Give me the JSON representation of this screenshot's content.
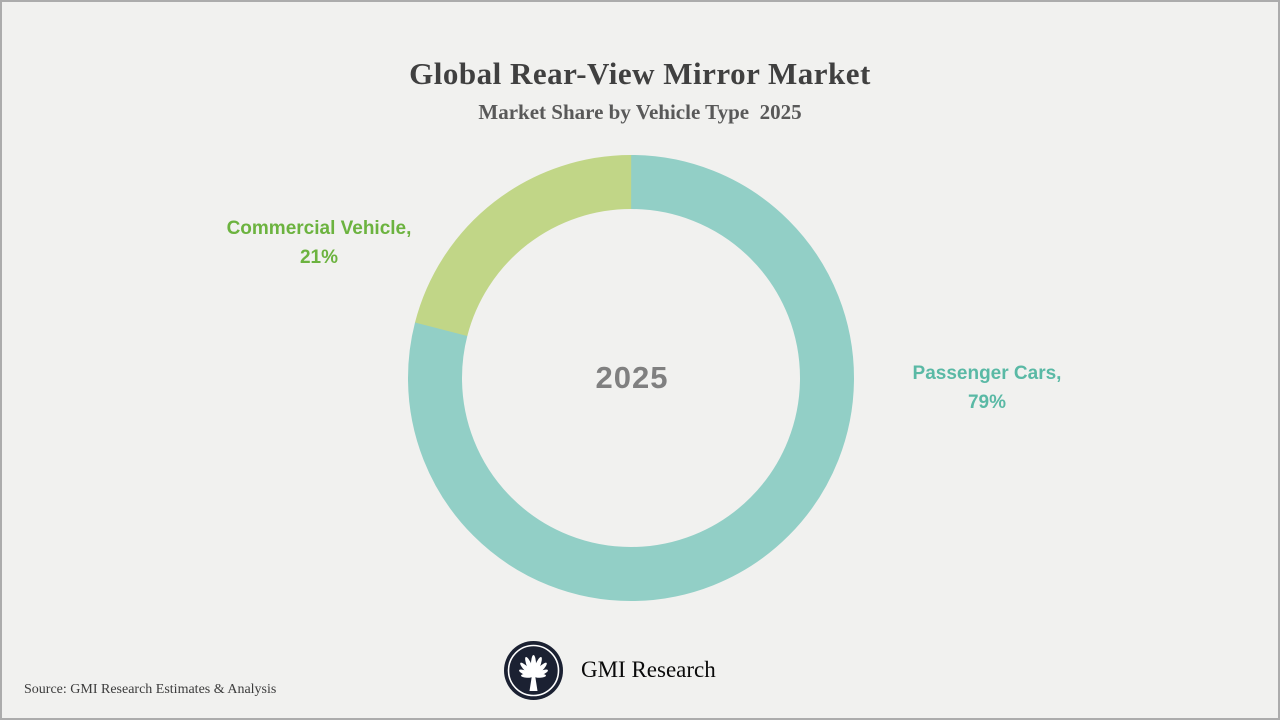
{
  "page": {
    "background_color": "#F1F1EF",
    "border_color": "#ACACAC"
  },
  "header": {
    "title": "Global Rear-View Mirror Market",
    "subtitle": "Market Share by Vehicle Type  2025"
  },
  "chart_data": {
    "type": "pie",
    "variant": "donut",
    "title": "Global Rear-View Mirror Market",
    "subtitle": "Market Share by Vehicle Type 2025",
    "center_label": "2025",
    "center_label_color": "#808080",
    "start_angle_deg": 0,
    "direction": "clockwise",
    "inner_radius_ratio": 0.76,
    "legend_position": "outside-labels",
    "segments": [
      {
        "label": "Passenger Cars",
        "value": 79,
        "color": "#92CFC6",
        "label_color": "#5AB9A5",
        "label_text": "Passenger Cars,",
        "value_text": "79%"
      },
      {
        "label": "Commercial Vehicle",
        "value": 21,
        "color": "#C1D687",
        "label_color": "#6CB33F",
        "label_text": "Commercial Vehicle,",
        "value_text": "21%"
      }
    ]
  },
  "footer": {
    "source": "Source: GMI Research Estimates & Analysis",
    "brand_name": "GMI Research",
    "logo": "gmi-palm-logo",
    "logo_color": "#1B2132"
  }
}
